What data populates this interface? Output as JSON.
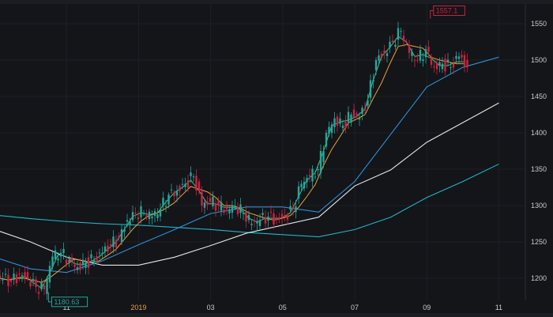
{
  "chart_data": {
    "type": "candlestick",
    "title": "",
    "xlabel": "",
    "ylabel": "",
    "ylim": [
      1175,
      1565
    ],
    "grid": true,
    "y_ticks": [
      "1200",
      "1250",
      "1300",
      "1350",
      "1400",
      "1450",
      "1500",
      "1550"
    ],
    "x_ticks": [
      {
        "label": "11",
        "month": "2018-11"
      },
      {
        "label": "2019",
        "month": "2019-01",
        "highlight": true
      },
      {
        "label": "03",
        "month": "2019-03"
      },
      {
        "label": "05",
        "month": "2019-05"
      },
      {
        "label": "07",
        "month": "2019-07"
      },
      {
        "label": "09",
        "month": "2019-09"
      },
      {
        "label": "11",
        "month": "2019-11"
      }
    ],
    "colors": {
      "up": "#26a69a",
      "down": "#d1213f",
      "background": "#131519",
      "grid": "#1e2026",
      "ma_fast": "#3fc48a",
      "ma_mid": "#e8a33d",
      "ma60": "#2f8fd8",
      "ma120": "#e6e6e6",
      "ma250": "#1fb5c9"
    },
    "candle_interval": "week",
    "candle_start": "2018-09-03",
    "closes": [
      1200,
      1195,
      1205,
      1200,
      1188,
      1185,
      1230,
      1235,
      1225,
      1215,
      1222,
      1225,
      1235,
      1245,
      1255,
      1280,
      1290,
      1290,
      1285,
      1295,
      1315,
      1320,
      1330,
      1340,
      1300,
      1305,
      1300,
      1295,
      1300,
      1290,
      1275,
      1280,
      1285,
      1280,
      1285,
      1295,
      1330,
      1340,
      1350,
      1400,
      1420,
      1410,
      1425,
      1420,
      1445,
      1500,
      1510,
      1525,
      1540,
      1510,
      1500,
      1515,
      1490,
      1495,
      1490,
      1505,
      1490
    ],
    "ma_lines": {
      "months": [
        "2018-09",
        "2018-10",
        "2018-11",
        "2018-12",
        "2019-01",
        "2019-02",
        "2019-03",
        "2019-04",
        "2019-05",
        "2019-06",
        "2019-07",
        "2019-08",
        "2019-09",
        "2019-10",
        "2019-11"
      ],
      "ma60": [
        1229,
        1213,
        1208,
        1224,
        1246,
        1267,
        1289,
        1298,
        1298,
        1291,
        1333,
        1398,
        1463,
        1490,
        1504
      ],
      "ma120": [
        1267,
        1250,
        1229,
        1218,
        1218,
        1229,
        1245,
        1262,
        1273,
        1284,
        1327,
        1349,
        1387,
        1414,
        1441
      ],
      "ma250": [
        1287,
        1282,
        1278,
        1275,
        1273,
        1270,
        1267,
        1263,
        1260,
        1257,
        1267,
        1284,
        1311,
        1333,
        1357
      ]
    },
    "annotations": [
      {
        "label": "1557.1",
        "type": "high",
        "month_offset": 12.1,
        "value": 1557.1
      },
      {
        "label": "1180.63",
        "type": "low",
        "month_offset": 1.5,
        "value": 1180.63
      }
    ]
  }
}
